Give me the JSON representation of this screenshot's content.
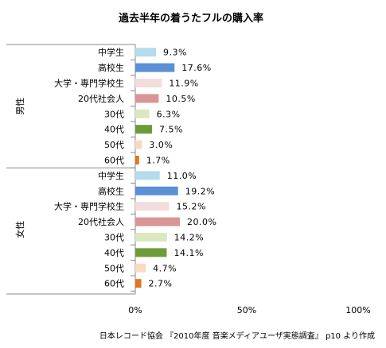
{
  "chart_data": {
    "type": "bar",
    "orientation": "horizontal",
    "title": "過去半年の着うたフルの購入率",
    "xlim": [
      0,
      100
    ],
    "x_ticks": [
      "0%",
      "50%",
      "100%"
    ],
    "grid": false,
    "legend": "none",
    "groups": [
      {
        "name": "男性",
        "categories": [
          "中学生",
          "高校生",
          "大学・専門学校生",
          "20代社会人",
          "30代",
          "40代",
          "50代",
          "60代"
        ],
        "values": [
          9.3,
          17.6,
          11.9,
          10.5,
          6.3,
          7.5,
          3.0,
          1.7
        ],
        "labels": [
          "9.3%",
          "17.6%",
          "11.9%",
          "10.5%",
          "6.3%",
          "7.5%",
          "3.0%",
          "1.7%"
        ]
      },
      {
        "name": "女性",
        "categories": [
          "中学生",
          "高校生",
          "大学・専門学校生",
          "20代社会人",
          "30代",
          "40代",
          "50代",
          "60代"
        ],
        "values": [
          11.0,
          19.2,
          15.2,
          20.0,
          14.2,
          14.1,
          4.7,
          2.7
        ],
        "labels": [
          "11.0%",
          "19.2%",
          "15.2%",
          "20.0%",
          "14.2%",
          "14.1%",
          "4.7%",
          "2.7%"
        ]
      }
    ],
    "colors": [
      "#b5dcec",
      "#5b8fd6",
      "#f3dcdc",
      "#d99595",
      "#dbe8be",
      "#6e9b3a",
      "#fbd9c2",
      "#e1761e"
    ]
  },
  "source": "日本レコード協会 『2010年度 音楽メディアユーザ実態調査』 p10 より作成"
}
